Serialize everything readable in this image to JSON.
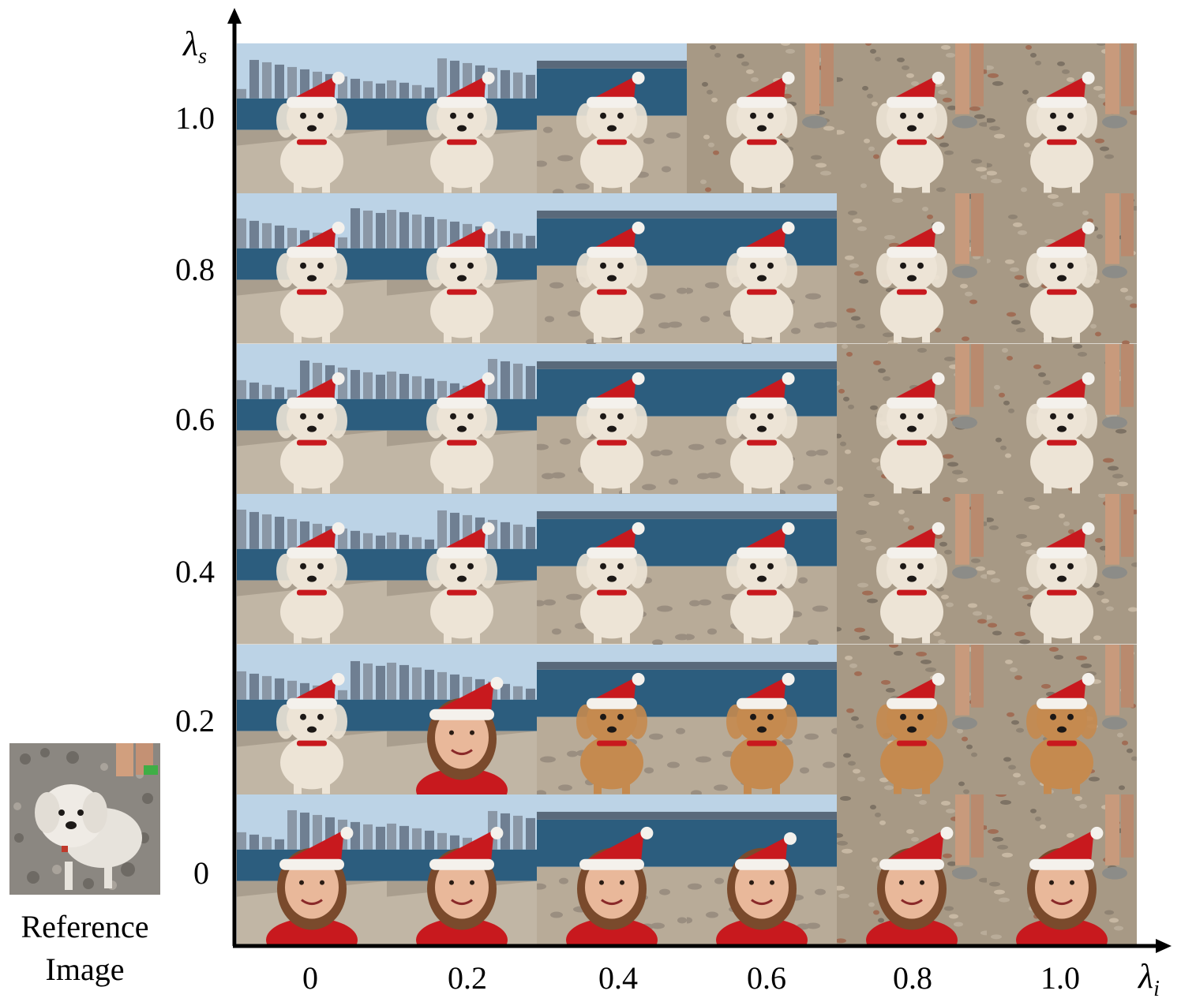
{
  "figure": {
    "y_axis_symbol": "λ",
    "y_axis_subscript": "s",
    "x_axis_symbol": "λ",
    "x_axis_subscript": "i",
    "y_ticks": [
      "1.0",
      "0.8",
      "0.6",
      "0.4",
      "0.2",
      "0"
    ],
    "x_ticks": [
      "0",
      "0.2",
      "0.4",
      "0.6",
      "0.8",
      "1.0"
    ],
    "reference_label_line1": "Reference",
    "reference_label_line2": "Image"
  },
  "grid": {
    "rows": [
      [
        "dog",
        "dog",
        "dog",
        "dog",
        "dog",
        "dog"
      ],
      [
        "dog",
        "dog",
        "dog",
        "dog",
        "dog",
        "dog"
      ],
      [
        "dog",
        "dog",
        "dog",
        "dog",
        "dog",
        "dog"
      ],
      [
        "dog",
        "dog",
        "dog",
        "dog",
        "dog",
        "dog"
      ],
      [
        "dog",
        "person",
        "brown-dog",
        "brown-dog",
        "brown-dog",
        "brown-dog"
      ],
      [
        "person",
        "person",
        "person",
        "child",
        "person",
        "person"
      ]
    ],
    "backgrounds": [
      [
        "city",
        "city",
        "shore",
        "pebbles",
        "pebbles",
        "pebbles"
      ],
      [
        "city",
        "city",
        "shore",
        "shore",
        "pebbles",
        "pebbles"
      ],
      [
        "city",
        "city",
        "shore",
        "shore",
        "pebbles",
        "pebbles"
      ],
      [
        "city",
        "city",
        "shore",
        "shore",
        "pebbles",
        "pebbles"
      ],
      [
        "city",
        "city",
        "shore",
        "shore",
        "pebbles",
        "pebbles"
      ],
      [
        "city",
        "city",
        "shore",
        "shore",
        "pebbles",
        "pebbles"
      ]
    ]
  },
  "colors": {
    "hat_red": "#c8191e",
    "hat_white": "#f4f1ec",
    "dog_fur": "#ede4d6",
    "brown_fur": "#c58a4f",
    "skin": "#e9b89a",
    "sky": "#bcd3e6",
    "water": "#2c5d7e",
    "stone": "#b8ab98",
    "pebble": "#9a8e80"
  }
}
